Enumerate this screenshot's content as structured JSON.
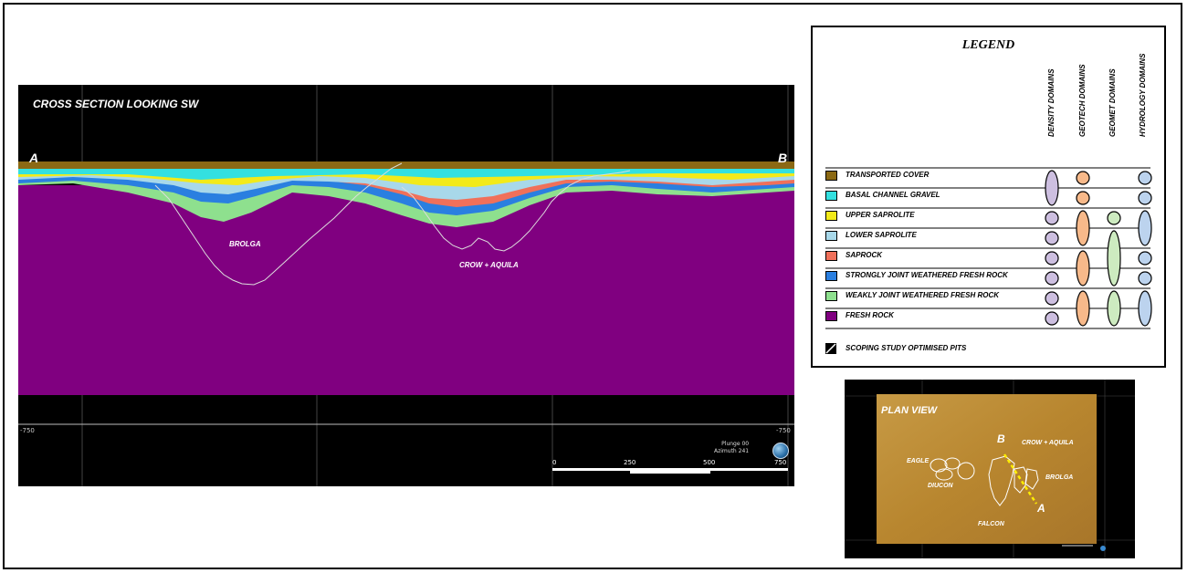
{
  "cross_section": {
    "title": "CROSS SECTION LOOKING SW",
    "end_a": "A",
    "end_b": "B",
    "pits": [
      "BROLGA",
      "CROW + AQUILA"
    ],
    "axis_left": "-750",
    "axis_right": "-750",
    "plunge": "Plunge 00",
    "azimuth": "Azimuth 241",
    "scale_ticks": [
      "0",
      "250",
      "500",
      "750"
    ]
  },
  "legend": {
    "title": "LEGEND",
    "columns": [
      "DENSITY DOMAINS",
      "GEOTECH DOMAINS",
      "GEOMET DOMAINS",
      "HYDROLOGY DOMAINS"
    ],
    "items": [
      {
        "label": "TRANSPORTED COVER",
        "color": "#8B6914"
      },
      {
        "label": "BASAL CHANNEL GRAVEL",
        "color": "#33E0E0"
      },
      {
        "label": "UPPER SAPROLITE",
        "color": "#F2EA1A"
      },
      {
        "label": "LOWER SAPROLITE",
        "color": "#A8D8EA"
      },
      {
        "label": "SAPROCK",
        "color": "#F0705A"
      },
      {
        "label": "STRONGLY JOINT WEATHERED FRESH ROCK",
        "color": "#2A7FE0"
      },
      {
        "label": "WEAKLY JOINT WEATHERED FRESH ROCK",
        "color": "#8EE08E"
      },
      {
        "label": "FRESH ROCK",
        "color": "#800080"
      }
    ],
    "pits_label": "SCOPING STUDY OPTIMISED PITS",
    "domain_colors": {
      "density": "#CDBFE0",
      "geotech": "#F7B98A",
      "geomet": "#CDEBC0",
      "hydrology": "#BCD3EE"
    }
  },
  "plan_view": {
    "title": "PLAN VIEW",
    "labels": [
      "CROW + AQUILA",
      "EAGLE",
      "DIUCON",
      "BROLGA",
      "FALCON"
    ],
    "letters": [
      "B",
      "A"
    ]
  }
}
